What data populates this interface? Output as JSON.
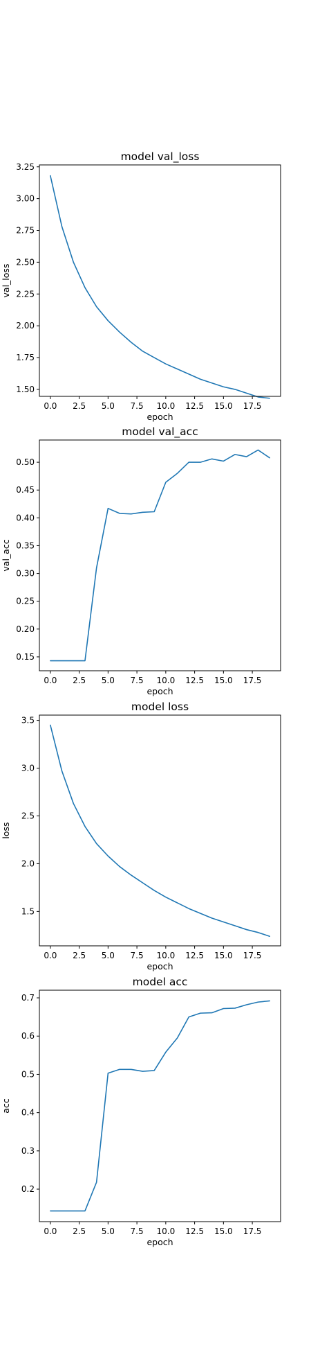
{
  "chart_data": [
    {
      "type": "line",
      "title": "model val_loss",
      "xlabel": "epoch",
      "ylabel": "val_loss",
      "xlim": [
        -0.95,
        19.95
      ],
      "ylim": [
        1.445,
        3.265
      ],
      "xticks": [
        0,
        2.5,
        5,
        7.5,
        10,
        12.5,
        15,
        17.5
      ],
      "xtick_labels": [
        "0.0",
        "2.5",
        "5.0",
        "7.5",
        "10.0",
        "12.5",
        "15.0",
        "17.5"
      ],
      "yticks": [
        1.5,
        1.75,
        2.0,
        2.25,
        2.5,
        2.75,
        3.0,
        3.25
      ],
      "ytick_labels": [
        "1.50",
        "1.75",
        "2.00",
        "2.25",
        "2.50",
        "2.75",
        "3.00",
        "3.25"
      ],
      "grid": false,
      "color": "#1f77b4",
      "x": [
        0,
        1,
        2,
        3,
        4,
        5,
        6,
        7,
        8,
        9,
        10,
        11,
        12,
        13,
        14,
        15,
        16,
        17,
        18,
        19
      ],
      "values": [
        3.18,
        2.78,
        2.5,
        2.3,
        2.15,
        2.04,
        1.95,
        1.87,
        1.8,
        1.75,
        1.7,
        1.66,
        1.62,
        1.58,
        1.55,
        1.52,
        1.5,
        1.47,
        1.44,
        1.43
      ]
    },
    {
      "type": "line",
      "title": "model val_acc",
      "xlabel": "epoch",
      "ylabel": "val_acc",
      "xlim": [
        -0.95,
        19.95
      ],
      "ylim": [
        0.125,
        0.54
      ],
      "xticks": [
        0,
        2.5,
        5,
        7.5,
        10,
        12.5,
        15,
        17.5
      ],
      "xtick_labels": [
        "0.0",
        "2.5",
        "5.0",
        "7.5",
        "10.0",
        "12.5",
        "15.0",
        "17.5"
      ],
      "yticks": [
        0.15,
        0.2,
        0.25,
        0.3,
        0.35,
        0.4,
        0.45,
        0.5
      ],
      "ytick_labels": [
        "0.15",
        "0.20",
        "0.25",
        "0.30",
        "0.35",
        "0.40",
        "0.45",
        "0.50"
      ],
      "grid": false,
      "color": "#1f77b4",
      "x": [
        0,
        1,
        2,
        3,
        4,
        5,
        6,
        7,
        8,
        9,
        10,
        11,
        12,
        13,
        14,
        15,
        16,
        17,
        18,
        19
      ],
      "values": [
        0.143,
        0.143,
        0.143,
        0.143,
        0.31,
        0.417,
        0.408,
        0.407,
        0.41,
        0.411,
        0.464,
        0.48,
        0.5,
        0.5,
        0.506,
        0.502,
        0.514,
        0.51,
        0.522,
        0.508
      ]
    },
    {
      "type": "line",
      "title": "model loss",
      "xlabel": "epoch",
      "ylabel": "loss",
      "xlim": [
        -0.95,
        19.95
      ],
      "ylim": [
        1.14,
        3.555
      ],
      "xticks": [
        0,
        2.5,
        5,
        7.5,
        10,
        12.5,
        15,
        17.5
      ],
      "xtick_labels": [
        "0.0",
        "2.5",
        "5.0",
        "7.5",
        "10.0",
        "12.5",
        "15.0",
        "17.5"
      ],
      "yticks": [
        1.5,
        2.0,
        2.5,
        3.0,
        3.5
      ],
      "ytick_labels": [
        "1.5",
        "2.0",
        "2.5",
        "3.0",
        "3.5"
      ],
      "grid": false,
      "color": "#1f77b4",
      "x": [
        0,
        1,
        2,
        3,
        4,
        5,
        6,
        7,
        8,
        9,
        10,
        11,
        12,
        13,
        14,
        15,
        16,
        17,
        18,
        19
      ],
      "values": [
        3.45,
        2.97,
        2.63,
        2.39,
        2.21,
        2.08,
        1.97,
        1.88,
        1.8,
        1.72,
        1.65,
        1.59,
        1.53,
        1.48,
        1.43,
        1.39,
        1.35,
        1.31,
        1.28,
        1.24
      ]
    },
    {
      "type": "line",
      "title": "model acc",
      "xlabel": "epoch",
      "ylabel": "acc",
      "xlim": [
        -0.95,
        19.95
      ],
      "ylim": [
        0.115,
        0.72
      ],
      "xticks": [
        0,
        2.5,
        5,
        7.5,
        10,
        12.5,
        15,
        17.5
      ],
      "xtick_labels": [
        "0.0",
        "2.5",
        "5.0",
        "7.5",
        "10.0",
        "12.5",
        "15.0",
        "17.5"
      ],
      "yticks": [
        0.2,
        0.3,
        0.4,
        0.5,
        0.6,
        0.7
      ],
      "ytick_labels": [
        "0.2",
        "0.3",
        "0.4",
        "0.5",
        "0.6",
        "0.7"
      ],
      "grid": false,
      "color": "#1f77b4",
      "x": [
        0,
        1,
        2,
        3,
        4,
        5,
        6,
        7,
        8,
        9,
        10,
        11,
        12,
        13,
        14,
        15,
        16,
        17,
        18,
        19
      ],
      "values": [
        0.143,
        0.143,
        0.143,
        0.143,
        0.218,
        0.503,
        0.513,
        0.513,
        0.508,
        0.51,
        0.558,
        0.595,
        0.65,
        0.66,
        0.661,
        0.672,
        0.673,
        0.682,
        0.689,
        0.692
      ]
    }
  ]
}
